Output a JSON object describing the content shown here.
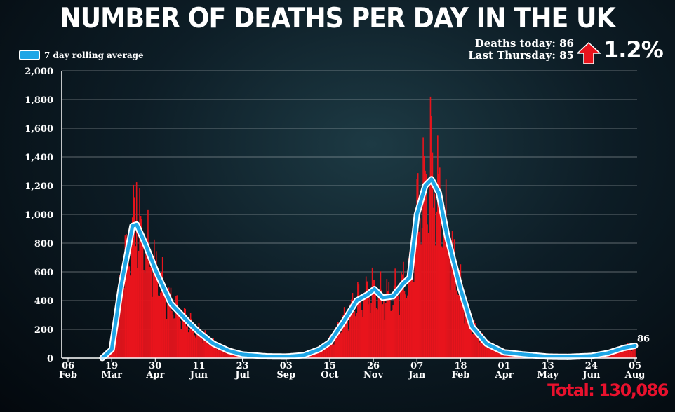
{
  "header": {
    "title": "NUMBER OF DEATHS PER DAY IN THE UK"
  },
  "legend": {
    "label": "7 day rolling average"
  },
  "stats": {
    "deaths_today": "Deaths today: 86",
    "last_thursday": "Last Thursday: 85",
    "change": "1.2%",
    "change_direction": "up"
  },
  "total": "Total: 130,086",
  "colors": {
    "bars": "#e8141c",
    "line": "#1fa6e6",
    "text": "#ffffff",
    "total": "#e8112d"
  },
  "chart_data": {
    "type": "bar",
    "title": "NUMBER OF DEATHS PER DAY IN THE UK",
    "xlabel": "",
    "ylabel": "",
    "ylim": [
      0,
      2000
    ],
    "yticks": [
      "0",
      "200",
      "400",
      "600",
      "800",
      "1,000",
      "1,200",
      "1,400",
      "1,600",
      "1,800",
      "2,000"
    ],
    "ytick_values": [
      0,
      200,
      400,
      600,
      800,
      1000,
      1200,
      1400,
      1600,
      1800,
      2000
    ],
    "x_start": "2020-02-06",
    "x_days": 546,
    "xticks": [
      {
        "day": 0,
        "d": "06",
        "m": "Feb"
      },
      {
        "day": 42,
        "d": "19",
        "m": "Mar"
      },
      {
        "day": 84,
        "d": "30",
        "m": "Apr"
      },
      {
        "day": 126,
        "d": "11",
        "m": "Jun"
      },
      {
        "day": 168,
        "d": "23",
        "m": "Jul"
      },
      {
        "day": 210,
        "d": "03",
        "m": "Sep"
      },
      {
        "day": 252,
        "d": "15",
        "m": "Oct"
      },
      {
        "day": 294,
        "d": "26",
        "m": "Nov"
      },
      {
        "day": 336,
        "d": "07",
        "m": "Jan"
      },
      {
        "day": 378,
        "d": "18",
        "m": "Feb"
      },
      {
        "day": 420,
        "d": "01",
        "m": "Apr"
      },
      {
        "day": 462,
        "d": "13",
        "m": "May"
      },
      {
        "day": 504,
        "d": "24",
        "m": "Jun"
      },
      {
        "day": 546,
        "d": "05",
        "m": "Aug"
      }
    ],
    "rolling_average": [
      [
        33,
        0
      ],
      [
        42,
        60
      ],
      [
        51,
        500
      ],
      [
        62,
        920
      ],
      [
        66,
        930
      ],
      [
        74,
        800
      ],
      [
        85,
        600
      ],
      [
        99,
        380
      ],
      [
        116,
        250
      ],
      [
        126,
        180
      ],
      [
        140,
        100
      ],
      [
        155,
        50
      ],
      [
        168,
        25
      ],
      [
        191,
        12
      ],
      [
        210,
        10
      ],
      [
        227,
        20
      ],
      [
        242,
        60
      ],
      [
        252,
        110
      ],
      [
        265,
        250
      ],
      [
        278,
        400
      ],
      [
        288,
        440
      ],
      [
        295,
        480
      ],
      [
        303,
        420
      ],
      [
        313,
        430
      ],
      [
        323,
        520
      ],
      [
        329,
        560
      ],
      [
        336,
        1000
      ],
      [
        344,
        1200
      ],
      [
        350,
        1245
      ],
      [
        357,
        1150
      ],
      [
        365,
        850
      ],
      [
        378,
        480
      ],
      [
        389,
        220
      ],
      [
        403,
        100
      ],
      [
        420,
        40
      ],
      [
        439,
        25
      ],
      [
        462,
        10
      ],
      [
        481,
        8
      ],
      [
        504,
        15
      ],
      [
        520,
        35
      ],
      [
        535,
        70
      ],
      [
        546,
        86
      ]
    ],
    "last_value_label": "86",
    "daily_peaks": [
      {
        "day": 66,
        "value": 1224
      },
      {
        "day": 349,
        "value": 1820
      }
    ],
    "grid": true
  }
}
